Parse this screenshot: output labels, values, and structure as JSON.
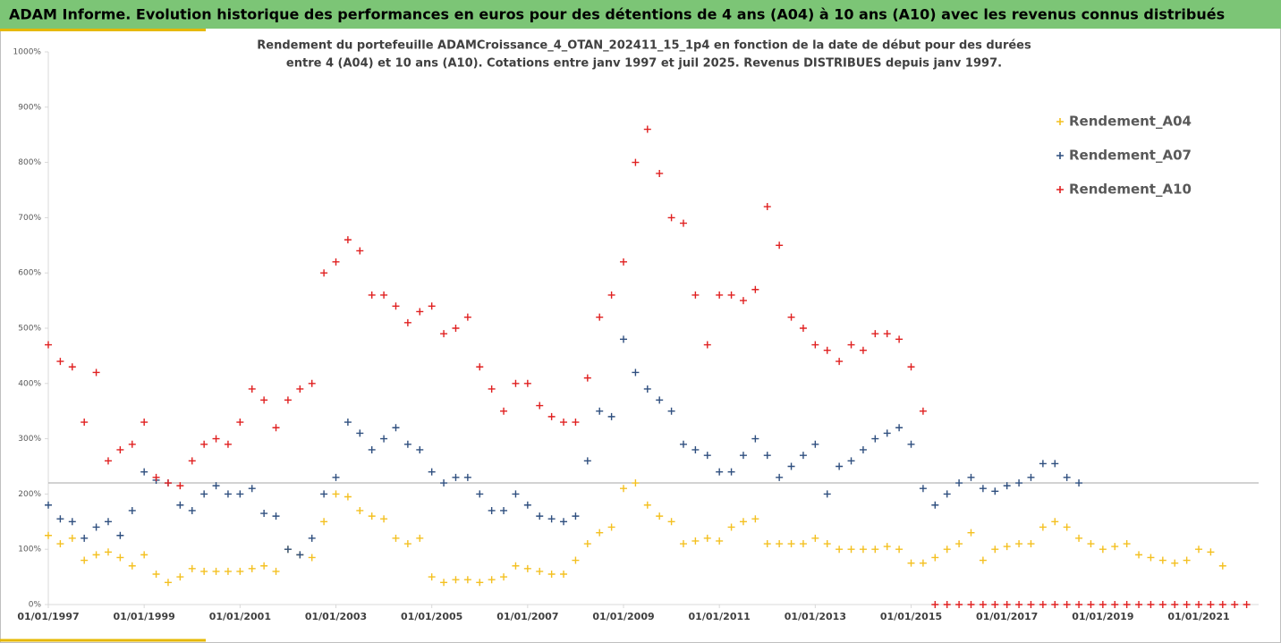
{
  "chart_data": {
    "type": "scatter",
    "title": "ADAM Informe. Evolution historique des performances en euros pour des détentions de 4 ans (A04) à 10 ans (A10) avec les revenus connus distribués",
    "subtitle": [
      "Rendement du portefeuille ADAMCroissance_4_OTAN_202411_15_1p4  en fonction de la date de début pour des durées",
      "entre 4 (A04) et 10 ans (A10). Cotations entre janv 1997 et juil 2025. Revenus DISTRIBUES depuis janv 1997."
    ],
    "x": [
      "01/01/1997",
      "01/04/1997",
      "01/07/1997",
      "01/10/1997",
      "01/01/1998",
      "01/04/1998",
      "01/07/1998",
      "01/10/1998",
      "01/01/1999",
      "01/04/1999",
      "01/07/1999",
      "01/10/1999",
      "01/01/2000",
      "01/04/2000",
      "01/07/2000",
      "01/10/2000",
      "01/01/2001",
      "01/04/2001",
      "01/07/2001",
      "01/10/2001",
      "01/01/2002",
      "01/04/2002",
      "01/07/2002",
      "01/10/2002",
      "01/01/2003",
      "01/04/2003",
      "01/07/2003",
      "01/10/2003",
      "01/01/2004",
      "01/04/2004",
      "01/07/2004",
      "01/10/2004",
      "01/01/2005",
      "01/04/2005",
      "01/07/2005",
      "01/10/2005",
      "01/01/2006",
      "01/04/2006",
      "01/07/2006",
      "01/10/2006",
      "01/01/2007",
      "01/04/2007",
      "01/07/2007",
      "01/10/2007",
      "01/01/2008",
      "01/04/2008",
      "01/07/2008",
      "01/10/2008",
      "01/01/2009",
      "01/04/2009",
      "01/07/2009",
      "01/10/2009",
      "01/01/2010",
      "01/04/2010",
      "01/07/2010",
      "01/10/2010",
      "01/01/2011",
      "01/04/2011",
      "01/07/2011",
      "01/10/2011",
      "01/01/2012",
      "01/04/2012",
      "01/07/2012",
      "01/10/2012",
      "01/01/2013",
      "01/04/2013",
      "01/07/2013",
      "01/10/2013",
      "01/01/2014",
      "01/04/2014",
      "01/07/2014",
      "01/10/2014",
      "01/01/2015",
      "01/04/2015",
      "01/07/2015",
      "01/10/2015",
      "01/01/2016",
      "01/04/2016",
      "01/07/2016",
      "01/10/2016",
      "01/01/2017",
      "01/04/2017",
      "01/07/2017",
      "01/10/2017",
      "01/01/2018",
      "01/04/2018",
      "01/07/2018",
      "01/10/2018",
      "01/01/2019",
      "01/04/2019",
      "01/07/2019",
      "01/10/2019",
      "01/01/2020",
      "01/04/2020",
      "01/07/2020",
      "01/10/2020",
      "01/01/2021",
      "01/04/2021",
      "01/07/2021",
      "01/10/2021",
      "01/01/2022"
    ],
    "series": [
      {
        "name": "Rendement_A04",
        "color": "#f4c020",
        "values": [
          125,
          110,
          120,
          80,
          90,
          95,
          85,
          70,
          90,
          55,
          40,
          50,
          65,
          60,
          60,
          60,
          60,
          65,
          70,
          60,
          100,
          90,
          85,
          150,
          200,
          195,
          170,
          160,
          155,
          120,
          110,
          120,
          50,
          40,
          45,
          45,
          40,
          45,
          50,
          70,
          65,
          60,
          55,
          55,
          80,
          110,
          130,
          140,
          210,
          220,
          180,
          160,
          150,
          110,
          115,
          120,
          115,
          140,
          150,
          155,
          110,
          110,
          110,
          110,
          120,
          110,
          100,
          100,
          100,
          100,
          105,
          100,
          75,
          75,
          85,
          100,
          110,
          130,
          80,
          100,
          105,
          110,
          110,
          140,
          150,
          140,
          120,
          110,
          100,
          105,
          110,
          90,
          85,
          80,
          75,
          80,
          100,
          95,
          70,
          null,
          null
        ]
      },
      {
        "name": "Rendement_A07",
        "color": "#2f4f7f",
        "values": [
          180,
          155,
          150,
          120,
          140,
          150,
          125,
          170,
          240,
          225,
          220,
          180,
          170,
          200,
          215,
          200,
          200,
          210,
          165,
          160,
          100,
          90,
          120,
          200,
          230,
          330,
          310,
          280,
          300,
          320,
          290,
          280,
          240,
          220,
          230,
          230,
          200,
          170,
          170,
          200,
          180,
          160,
          155,
          150,
          160,
          260,
          350,
          340,
          480,
          420,
          390,
          370,
          350,
          290,
          280,
          270,
          240,
          240,
          270,
          300,
          270,
          230,
          250,
          270,
          290,
          200,
          250,
          260,
          280,
          300,
          310,
          320,
          290,
          210,
          180,
          200,
          220,
          230,
          210,
          205,
          215,
          220,
          230,
          255,
          255,
          230,
          220,
          null,
          null,
          null,
          null,
          null,
          null,
          null,
          null,
          null,
          null,
          null,
          null,
          null,
          null
        ]
      },
      {
        "name": "Rendement_A10",
        "color": "#e02020",
        "values": [
          470,
          440,
          430,
          330,
          420,
          260,
          280,
          290,
          330,
          230,
          220,
          215,
          260,
          290,
          300,
          290,
          330,
          390,
          370,
          320,
          370,
          390,
          400,
          600,
          620,
          660,
          640,
          560,
          560,
          540,
          510,
          530,
          540,
          490,
          500,
          520,
          430,
          390,
          350,
          400,
          400,
          360,
          340,
          330,
          330,
          410,
          520,
          560,
          620,
          800,
          860,
          780,
          700,
          690,
          560,
          470,
          560,
          560,
          550,
          570,
          720,
          650,
          520,
          500,
          470,
          460,
          440,
          470,
          460,
          490,
          490,
          480,
          430,
          350,
          0,
          0,
          0,
          0,
          0,
          0,
          0,
          0,
          0,
          0,
          0,
          0,
          0,
          0,
          0,
          0,
          0,
          0,
          0,
          0,
          0,
          0,
          0,
          0,
          0,
          0,
          0
        ]
      }
    ],
    "xlim": [
      "01/01/1997",
      "01/04/2022"
    ],
    "xticks": [
      "01/01/1997",
      "01/01/1999",
      "01/01/2001",
      "01/01/2003",
      "01/01/2005",
      "01/01/2007",
      "01/01/2009",
      "01/01/2011",
      "01/01/2013",
      "01/01/2015",
      "01/01/2017",
      "01/01/2019",
      "01/01/2021"
    ],
    "ylim": [
      0,
      1000
    ],
    "yticks": [
      {
        "value": 0,
        "label": "0%"
      },
      {
        "value": 100,
        "label": "100%"
      },
      {
        "value": 200,
        "label": "200%"
      },
      {
        "value": 300,
        "label": "300%"
      },
      {
        "value": 400,
        "label": "400%"
      },
      {
        "value": 500,
        "label": "500%"
      },
      {
        "value": 600,
        "label": "600%"
      },
      {
        "value": 700,
        "label": "700%"
      },
      {
        "value": 800,
        "label": "800%"
      },
      {
        "value": 900,
        "label": "900%"
      },
      {
        "value": 1000,
        "label": "1000%"
      }
    ],
    "hline": 220,
    "grid": false,
    "legend": "upper right"
  }
}
